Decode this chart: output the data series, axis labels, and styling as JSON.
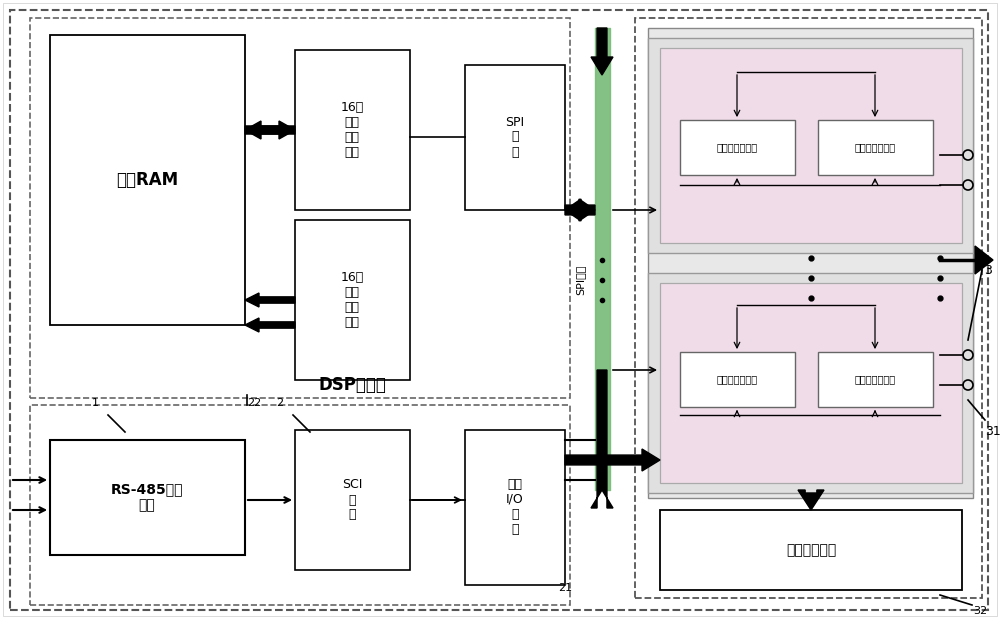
{
  "bg_color": "#ffffff",
  "labels": {
    "ram": "片外RAM",
    "data_bus": "16位\n数据\n总线\n接口",
    "addr_bus": "16位\n地址\n总线\n接口",
    "dsp": "DSP控制器",
    "rs485": "RS-485转换\n电路",
    "sci": "SCI\n接\n口",
    "spi": "SPI\n接\n口",
    "general_io": "通用\nI/O\n接\n口",
    "spi_bus": "SPI总线",
    "decoder": "译码选择电路",
    "digi1_top": "第一数字电位器",
    "digi2_top": "第二数字电位器",
    "digi1_bot": "第一数字电位器",
    "digi2_bot": "第二数字电位器",
    "n22": "22",
    "n21": "21",
    "n1": "1",
    "n2": "2",
    "n3": "3",
    "n31": "31",
    "n32": "32"
  }
}
